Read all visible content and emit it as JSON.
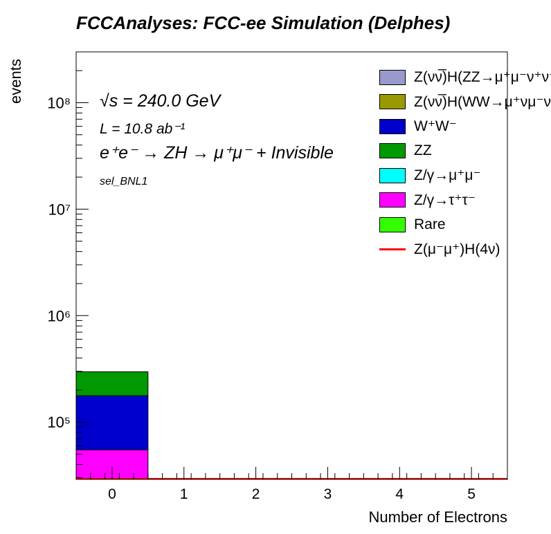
{
  "header": {
    "title": "FCCAnalyses: FCC-ee Simulation (Delphes)"
  },
  "annotations": {
    "energy": "√s = 240.0 GeV",
    "lumi": "L = 10.8 ab⁻¹",
    "process": "e⁺e⁻ → ZH → μ⁺μ⁻ + Invisible",
    "selection": "sel_BNL1"
  },
  "chart_data": {
    "type": "bar",
    "stacked": true,
    "log_y": true,
    "xlabel": "Number of Electrons",
    "ylabel": "events",
    "xlim": [
      -0.5,
      5.5
    ],
    "ylim": [
      29000,
      300000000
    ],
    "x_ticks": [
      0,
      1,
      2,
      3,
      4,
      5
    ],
    "x_tick_labels": [
      "0",
      "1",
      "2",
      "3",
      "4",
      "5"
    ],
    "y_ticks": [
      100000,
      1000000,
      10000000,
      100000000
    ],
    "y_tick_labels": [
      "10⁵",
      "10⁶",
      "10⁷",
      "10⁸"
    ],
    "bin_edges": [
      -0.5,
      0.5,
      1.5,
      2.5,
      3.5,
      4.5,
      5.5
    ],
    "series": [
      {
        "name": "Z/γ→τ⁺τ⁻",
        "color": "#ff00ff",
        "values": [
          55000,
          0,
          0,
          0,
          0,
          0
        ]
      },
      {
        "name": "W⁺W⁻",
        "color": "#0000cc",
        "values": [
          122000,
          0,
          0,
          0,
          0,
          0
        ]
      },
      {
        "name": "ZZ",
        "color": "#009900",
        "values": [
          120000,
          0,
          0,
          0,
          0,
          0
        ]
      }
    ],
    "signal": {
      "name": "Z(μ⁻μ⁺)H(4ν)",
      "color": "#ff0000",
      "values": [
        0,
        0,
        0,
        0,
        0,
        0
      ]
    },
    "legend": {
      "placement": "top-right",
      "entries": [
        {
          "label": "Z(νν̅)H(ZZ→μ⁺μ⁻ν⁺ν⁻)",
          "color": "#9999cc",
          "kind": "fill"
        },
        {
          "label": "Z(νν̅)H(WW→μ⁺νμ⁻ν)",
          "color": "#999900",
          "kind": "fill"
        },
        {
          "label": "W⁺W⁻",
          "color": "#0000cc",
          "kind": "fill"
        },
        {
          "label": "ZZ",
          "color": "#009900",
          "kind": "fill"
        },
        {
          "label": "Z/γ→μ⁺μ⁻",
          "color": "#00ffff",
          "kind": "fill"
        },
        {
          "label": "Z/γ→τ⁺τ⁻",
          "color": "#ff00ff",
          "kind": "fill"
        },
        {
          "label": "Rare",
          "color": "#33ff00",
          "kind": "fill"
        },
        {
          "label": "Z(μ⁻μ⁺)H(4ν)",
          "color": "#ff0000",
          "kind": "line"
        }
      ]
    }
  }
}
